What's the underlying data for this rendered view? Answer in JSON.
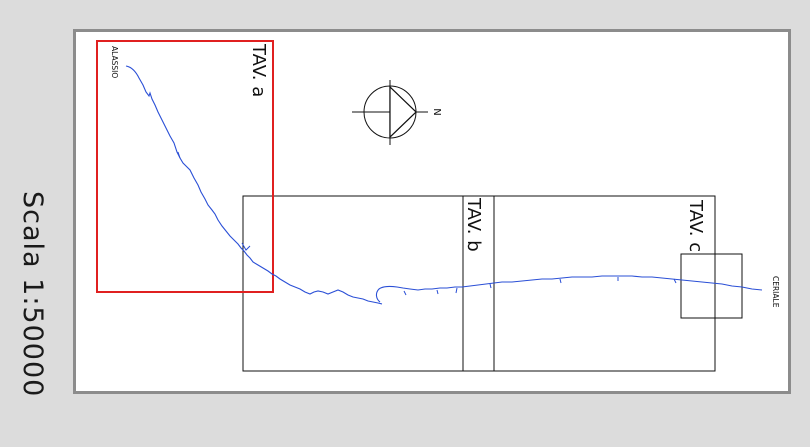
{
  "scale_label": "Scala 1:50000",
  "north_label": "N",
  "places": {
    "start": "ALASSIO",
    "end": "CERIALE"
  },
  "sheets": [
    {
      "label": "TAV. a",
      "color": "#e02020"
    },
    {
      "label": "TAV. b",
      "color": "#111111"
    },
    {
      "label": "TAV. c",
      "color": "#111111"
    }
  ],
  "colors": {
    "coastline": "#2a4fd6",
    "frame": "#8c8c8c",
    "background": "#dcdcdc"
  },
  "icons": [
    "compass-north-icon"
  ]
}
